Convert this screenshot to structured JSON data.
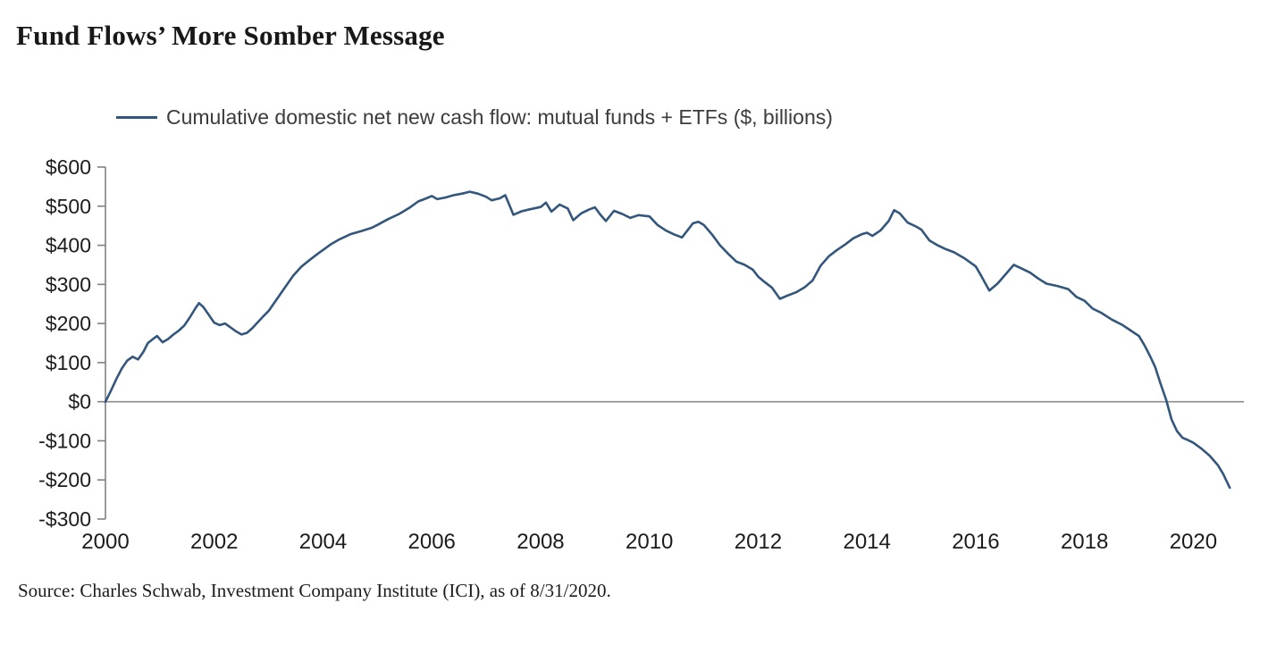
{
  "title": "Fund Flows’ More Somber Message",
  "source": "Source: Charles Schwab, Investment Company Institute (ICI), as of 8/31/2020.",
  "chart_data": {
    "type": "line",
    "title": "Fund Flows’ More Somber Message",
    "legend": "Cumulative domestic net new cash flow: mutual funds + ETFs ($, billions)",
    "legend_position": "top-left",
    "units": "USD billions",
    "xlabel": "",
    "ylabel": "",
    "xlim": [
      2000,
      2020.7
    ],
    "ylim": [
      -300,
      600
    ],
    "grid": "zero-line-only",
    "x_ticks": [
      2000,
      2002,
      2004,
      2006,
      2008,
      2010,
      2012,
      2014,
      2016,
      2018,
      2020
    ],
    "x_tick_labels": [
      "2000",
      "2002",
      "2004",
      "2006",
      "2008",
      "2010",
      "2012",
      "2014",
      "2016",
      "2018",
      "2020"
    ],
    "y_ticks": [
      600,
      500,
      400,
      300,
      200,
      100,
      0,
      -100,
      -200,
      -300
    ],
    "y_tick_labels": [
      "$600",
      "$500",
      "$400",
      "$300",
      "$200",
      "$100",
      "$0",
      "-$100",
      "-$200",
      "-$300"
    ],
    "colors": {
      "line": "#33567d",
      "axis": "#808080",
      "zero_line": "#8c8c8c",
      "tick_text": "#1c1c1c"
    },
    "point_format": [
      "year_decimal",
      "usd_billions"
    ],
    "points": [
      [
        2000.0,
        0
      ],
      [
        2000.1,
        28
      ],
      [
        2000.2,
        58
      ],
      [
        2000.3,
        85
      ],
      [
        2000.4,
        105
      ],
      [
        2000.5,
        115
      ],
      [
        2000.6,
        108
      ],
      [
        2000.7,
        128
      ],
      [
        2000.78,
        150
      ],
      [
        2000.87,
        160
      ],
      [
        2000.95,
        168
      ],
      [
        2001.05,
        152
      ],
      [
        2001.15,
        160
      ],
      [
        2001.25,
        172
      ],
      [
        2001.35,
        182
      ],
      [
        2001.45,
        195
      ],
      [
        2001.55,
        215
      ],
      [
        2001.65,
        238
      ],
      [
        2001.72,
        252
      ],
      [
        2001.8,
        242
      ],
      [
        2001.9,
        222
      ],
      [
        2002.0,
        202
      ],
      [
        2002.1,
        196
      ],
      [
        2002.2,
        200
      ],
      [
        2002.3,
        190
      ],
      [
        2002.4,
        180
      ],
      [
        2002.5,
        172
      ],
      [
        2002.6,
        176
      ],
      [
        2002.7,
        188
      ],
      [
        2002.8,
        203
      ],
      [
        2002.9,
        218
      ],
      [
        2003.0,
        232
      ],
      [
        2003.15,
        262
      ],
      [
        2003.3,
        292
      ],
      [
        2003.45,
        322
      ],
      [
        2003.6,
        345
      ],
      [
        2003.75,
        362
      ],
      [
        2003.9,
        378
      ],
      [
        2004.0,
        388
      ],
      [
        2004.15,
        403
      ],
      [
        2004.3,
        415
      ],
      [
        2004.5,
        428
      ],
      [
        2004.7,
        436
      ],
      [
        2004.9,
        445
      ],
      [
        2005.0,
        452
      ],
      [
        2005.2,
        467
      ],
      [
        2005.4,
        480
      ],
      [
        2005.6,
        497
      ],
      [
        2005.75,
        512
      ],
      [
        2005.9,
        520
      ],
      [
        2006.0,
        526
      ],
      [
        2006.1,
        518
      ],
      [
        2006.25,
        522
      ],
      [
        2006.4,
        528
      ],
      [
        2006.55,
        532
      ],
      [
        2006.7,
        537
      ],
      [
        2006.85,
        532
      ],
      [
        2007.0,
        524
      ],
      [
        2007.1,
        515
      ],
      [
        2007.25,
        520
      ],
      [
        2007.35,
        528
      ],
      [
        2007.45,
        495
      ],
      [
        2007.5,
        478
      ],
      [
        2007.65,
        487
      ],
      [
        2007.8,
        492
      ],
      [
        2008.0,
        498
      ],
      [
        2008.1,
        509
      ],
      [
        2008.2,
        486
      ],
      [
        2008.35,
        504
      ],
      [
        2008.5,
        494
      ],
      [
        2008.6,
        464
      ],
      [
        2008.75,
        482
      ],
      [
        2008.9,
        492
      ],
      [
        2009.0,
        497
      ],
      [
        2009.1,
        478
      ],
      [
        2009.2,
        462
      ],
      [
        2009.35,
        488
      ],
      [
        2009.5,
        480
      ],
      [
        2009.65,
        470
      ],
      [
        2009.8,
        477
      ],
      [
        2010.0,
        474
      ],
      [
        2010.15,
        452
      ],
      [
        2010.3,
        438
      ],
      [
        2010.45,
        428
      ],
      [
        2010.6,
        420
      ],
      [
        2010.7,
        438
      ],
      [
        2010.8,
        456
      ],
      [
        2010.9,
        460
      ],
      [
        2011.0,
        452
      ],
      [
        2011.15,
        428
      ],
      [
        2011.3,
        400
      ],
      [
        2011.45,
        378
      ],
      [
        2011.6,
        358
      ],
      [
        2011.75,
        350
      ],
      [
        2011.9,
        338
      ],
      [
        2012.0,
        320
      ],
      [
        2012.1,
        308
      ],
      [
        2012.25,
        292
      ],
      [
        2012.4,
        263
      ],
      [
        2012.55,
        272
      ],
      [
        2012.7,
        280
      ],
      [
        2012.85,
        292
      ],
      [
        2013.0,
        310
      ],
      [
        2013.15,
        348
      ],
      [
        2013.3,
        372
      ],
      [
        2013.45,
        388
      ],
      [
        2013.6,
        402
      ],
      [
        2013.75,
        418
      ],
      [
        2013.9,
        428
      ],
      [
        2014.0,
        432
      ],
      [
        2014.1,
        424
      ],
      [
        2014.25,
        438
      ],
      [
        2014.4,
        462
      ],
      [
        2014.5,
        490
      ],
      [
        2014.6,
        482
      ],
      [
        2014.75,
        458
      ],
      [
        2014.9,
        448
      ],
      [
        2015.0,
        440
      ],
      [
        2015.15,
        412
      ],
      [
        2015.3,
        400
      ],
      [
        2015.45,
        390
      ],
      [
        2015.6,
        382
      ],
      [
        2015.8,
        366
      ],
      [
        2016.0,
        346
      ],
      [
        2016.1,
        322
      ],
      [
        2016.25,
        284
      ],
      [
        2016.4,
        302
      ],
      [
        2016.55,
        326
      ],
      [
        2016.7,
        350
      ],
      [
        2016.85,
        340
      ],
      [
        2017.0,
        330
      ],
      [
        2017.15,
        315
      ],
      [
        2017.3,
        302
      ],
      [
        2017.5,
        296
      ],
      [
        2017.7,
        288
      ],
      [
        2017.85,
        268
      ],
      [
        2018.0,
        258
      ],
      [
        2018.15,
        238
      ],
      [
        2018.3,
        228
      ],
      [
        2018.5,
        210
      ],
      [
        2018.7,
        196
      ],
      [
        2018.85,
        182
      ],
      [
        2019.0,
        168
      ],
      [
        2019.1,
        145
      ],
      [
        2019.2,
        118
      ],
      [
        2019.3,
        88
      ],
      [
        2019.4,
        45
      ],
      [
        2019.5,
        5
      ],
      [
        2019.6,
        -45
      ],
      [
        2019.7,
        -75
      ],
      [
        2019.8,
        -92
      ],
      [
        2019.9,
        -98
      ],
      [
        2020.0,
        -105
      ],
      [
        2020.15,
        -120
      ],
      [
        2020.3,
        -138
      ],
      [
        2020.45,
        -162
      ],
      [
        2020.55,
        -185
      ],
      [
        2020.67,
        -220
      ]
    ]
  }
}
